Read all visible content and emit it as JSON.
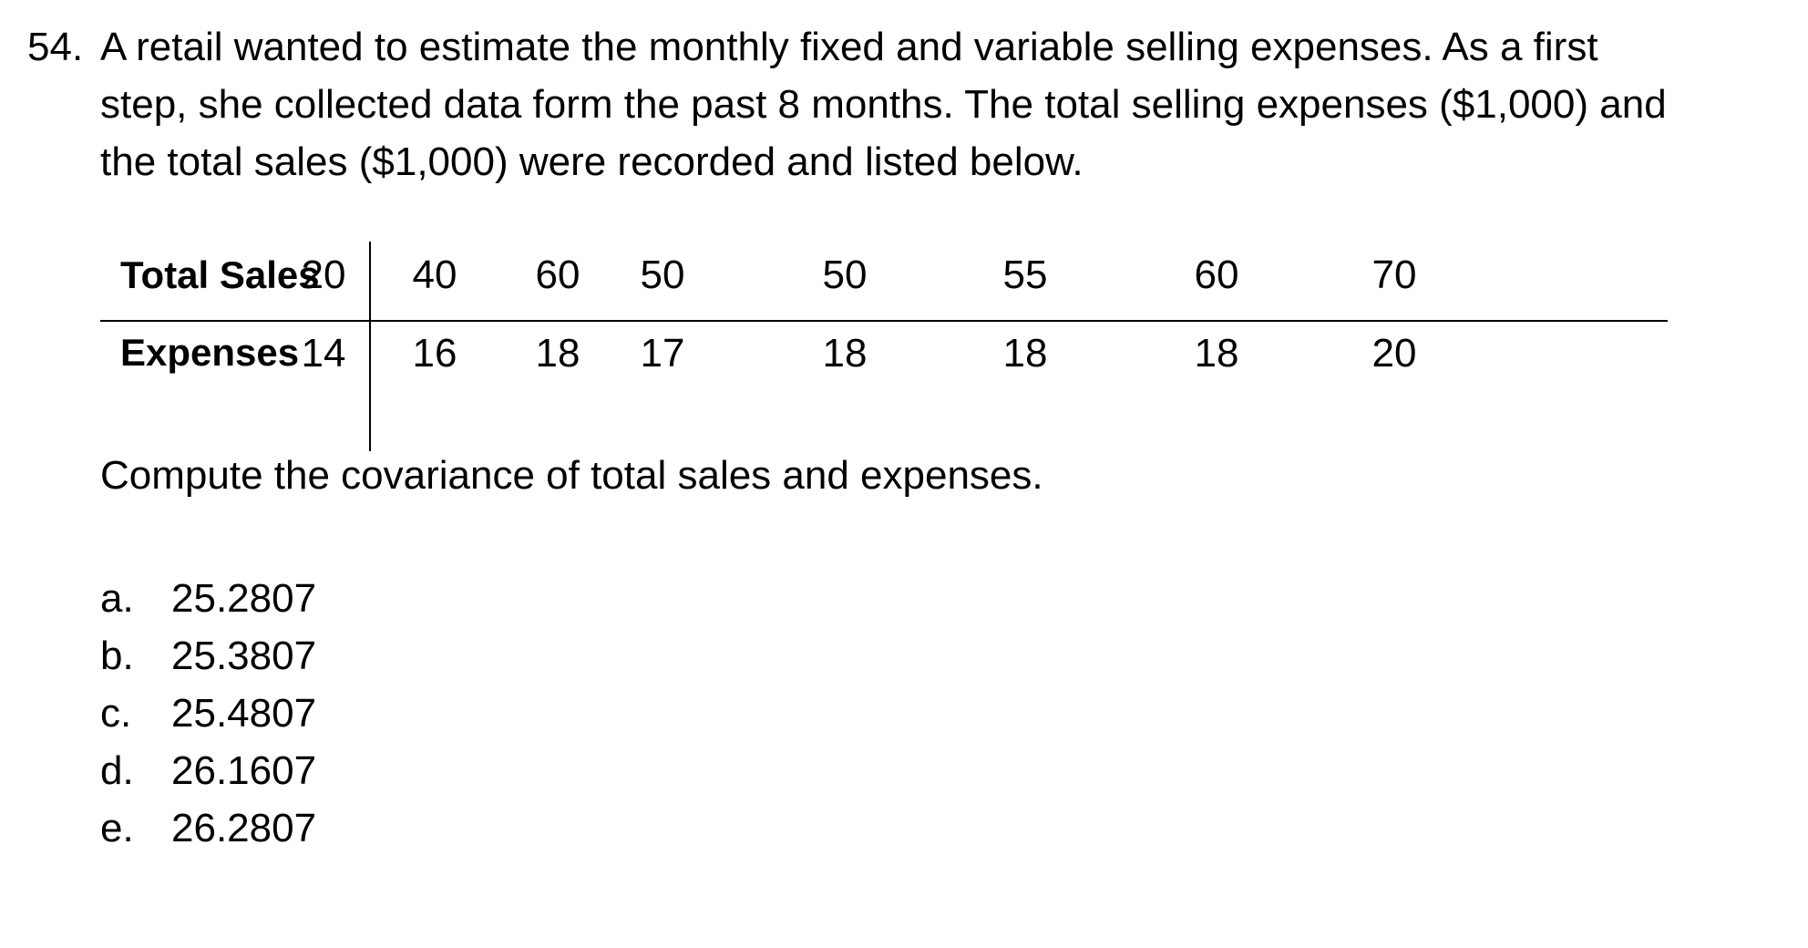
{
  "question": {
    "number": "54.",
    "lines": [
      "A retail wanted to estimate the monthly fixed and variable selling expenses. As a first",
      "step, she collected data form the past 8 months. The total selling expenses ($1,000) and",
      "the total sales ($1,000) were recorded and listed below."
    ]
  },
  "table": {
    "rows": [
      {
        "label": "Total Sales",
        "values": [
          "20",
          "40",
          "60",
          "50",
          "50",
          "55",
          "60",
          "70"
        ]
      },
      {
        "label": "Expenses",
        "values": [
          "14",
          "16",
          "18",
          "17",
          "18",
          "18",
          "18",
          "20"
        ]
      }
    ]
  },
  "prompt": "Compute the covariance of total sales and expenses.",
  "choices": [
    {
      "letter": "a.",
      "value": "25.2807"
    },
    {
      "letter": "b.",
      "value": "25.3807"
    },
    {
      "letter": "c.",
      "value": "25.4807"
    },
    {
      "letter": "d.",
      "value": "26.1607"
    },
    {
      "letter": "e.",
      "value": "26.2807"
    }
  ]
}
